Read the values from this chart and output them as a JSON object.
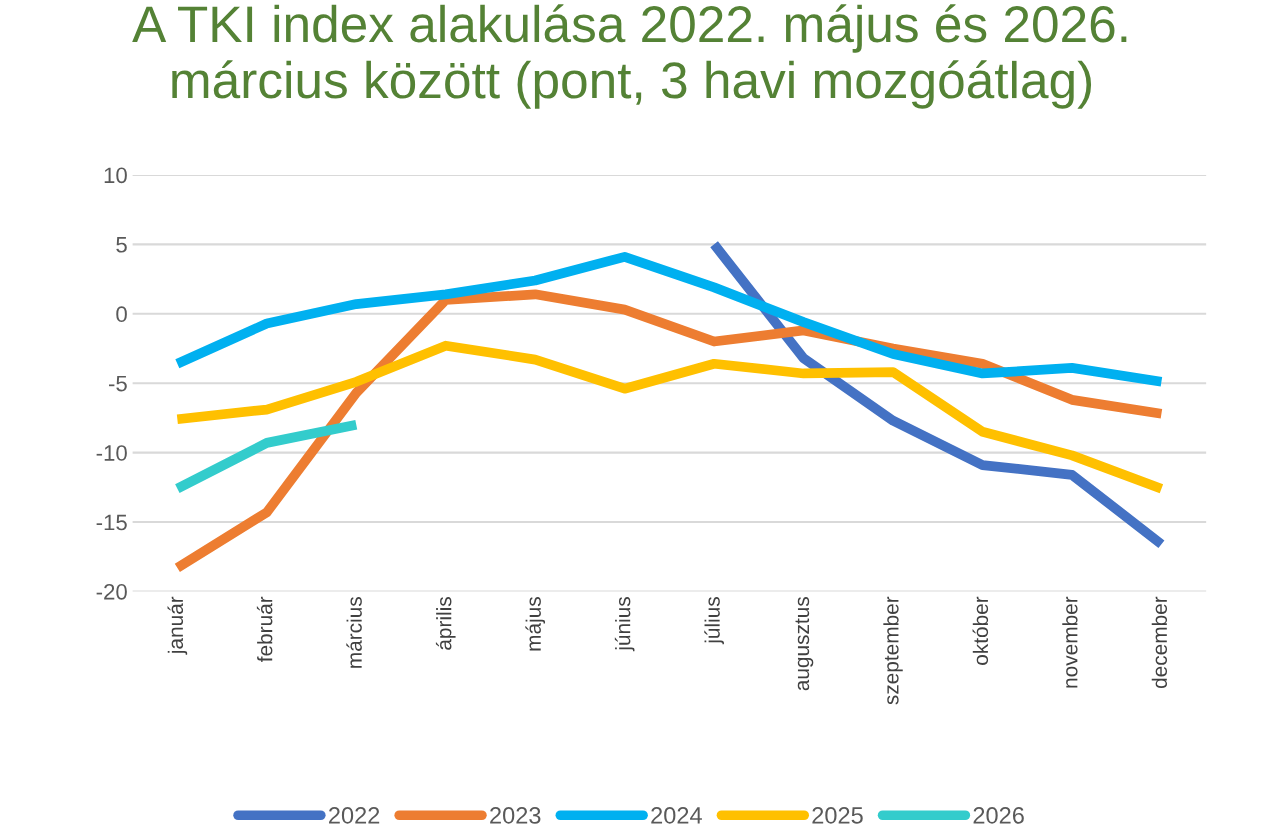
{
  "chart_data": {
    "type": "line",
    "title": "A TKI index alakulása 2022. május és 2026.\nmárcius között (pont, 3 havi mozgóátlag)",
    "categories": [
      "január",
      "február",
      "március",
      "április",
      "május",
      "június",
      "július",
      "augusztus",
      "szeptember",
      "október",
      "november",
      "december"
    ],
    "series": [
      {
        "name": "2022",
        "color": "#4472c4",
        "values": [
          null,
          null,
          null,
          null,
          null,
          null,
          5.0,
          -3.2,
          -7.7,
          -10.9,
          -11.6,
          -16.6
        ]
      },
      {
        "name": "2023",
        "color": "#ed7d31",
        "values": [
          -18.3,
          -14.3,
          -5.7,
          1.0,
          1.4,
          0.3,
          -2.0,
          -1.2,
          -2.5,
          -3.6,
          -6.2,
          -7.2
        ]
      },
      {
        "name": "2024",
        "color": "#00b0f0",
        "values": [
          -3.6,
          -0.7,
          0.7,
          1.4,
          2.4,
          4.1,
          1.9,
          -0.6,
          -2.9,
          -4.3,
          -3.9,
          -4.9
        ]
      },
      {
        "name": "2025",
        "color": "#ffc000",
        "values": [
          -7.6,
          -6.9,
          -4.9,
          -2.3,
          -3.3,
          -5.4,
          -3.6,
          -4.3,
          -4.2,
          -8.5,
          -10.2,
          -12.6
        ]
      },
      {
        "name": "2026",
        "color": "#33cccc",
        "values": [
          -12.6,
          -9.3,
          -8.0,
          null,
          null,
          null,
          null,
          null,
          null,
          null,
          null,
          null
        ]
      }
    ],
    "ylim": [
      -20,
      10
    ],
    "yticks": [
      -20,
      -15,
      -10,
      -5,
      0,
      5,
      10
    ],
    "grid": "y",
    "legend": "bottom",
    "line_style": "solid",
    "marker": "none"
  }
}
